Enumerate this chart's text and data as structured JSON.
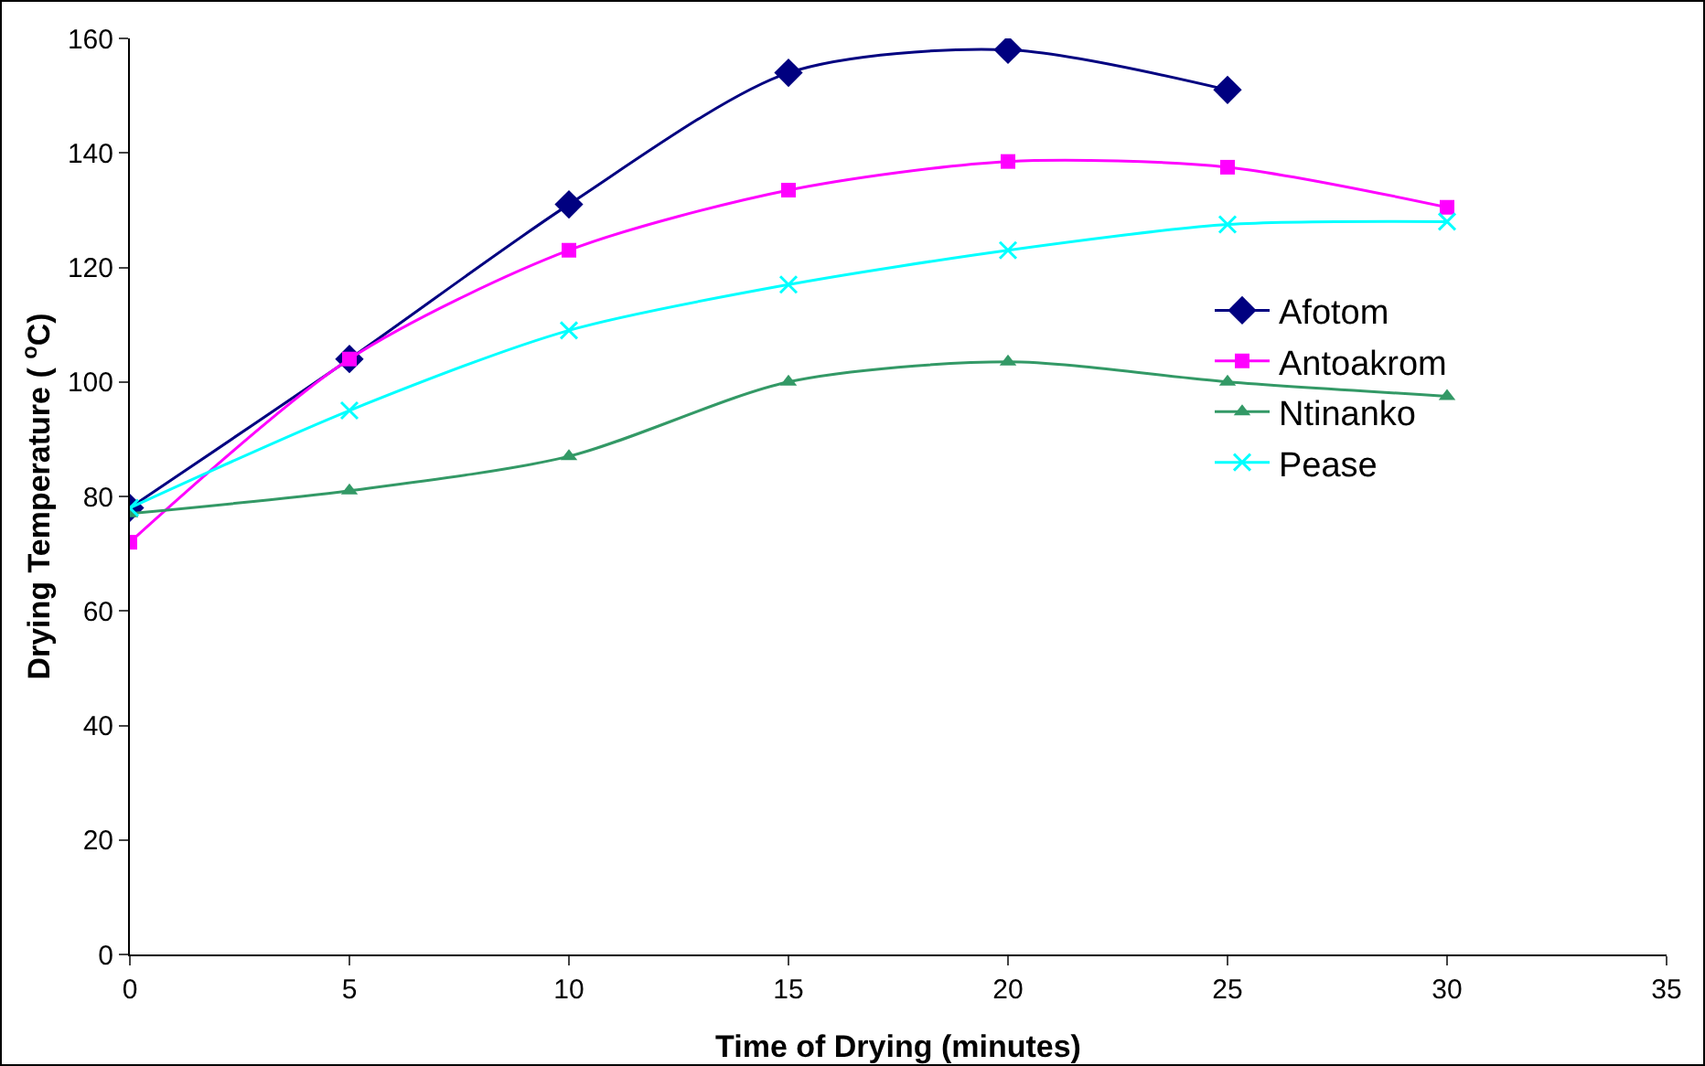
{
  "chart_data": {
    "type": "line",
    "xlabel": "Time of Drying (minutes)",
    "ylabel": "Drying Temperature ( $^{o}$C)",
    "xlim": [
      0,
      35
    ],
    "xticks": [
      0,
      5,
      10,
      15,
      20,
      25,
      30,
      35
    ],
    "ylim": [
      0,
      160
    ],
    "yticks": [
      0,
      20,
      40,
      60,
      80,
      100,
      120,
      140,
      160
    ],
    "grid": false,
    "legend": "right",
    "series": [
      {
        "name": "Afotom",
        "color": "#000080",
        "marker": "diamond",
        "x": [
          0,
          5,
          10,
          15,
          20,
          25
        ],
        "values": [
          78,
          104,
          131,
          154,
          158,
          151
        ]
      },
      {
        "name": "Antoakrom",
        "color": "#ff00ff",
        "marker": "square",
        "x": [
          0,
          5,
          10,
          15,
          20,
          25,
          30
        ],
        "values": [
          72,
          104,
          123,
          133.5,
          138.5,
          137.5,
          130.5
        ]
      },
      {
        "name": "Ntinanko",
        "color": "#339966",
        "marker": "triangle",
        "x": [
          0,
          5,
          10,
          15,
          20,
          25,
          30
        ],
        "values": [
          77,
          81,
          87,
          100,
          103.5,
          100,
          97.5
        ]
      },
      {
        "name": "Pease",
        "color": "#00ffff",
        "marker": "cross",
        "x": [
          0,
          5,
          10,
          15,
          20,
          25,
          30
        ],
        "values": [
          78,
          95,
          109,
          117,
          123,
          127.5,
          128
        ]
      }
    ]
  }
}
